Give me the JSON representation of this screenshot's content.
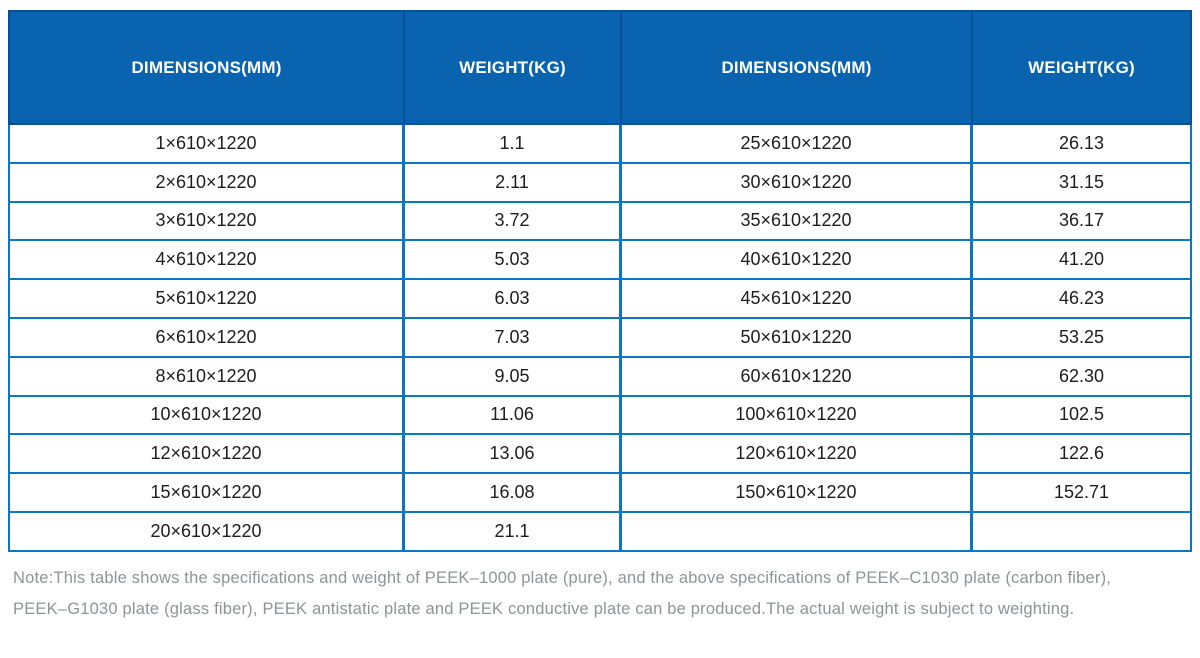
{
  "colors": {
    "header_bg": "#0A63AE",
    "header_divider": "#084F9A",
    "grid_line": "#0B76C6",
    "cell_text": "#1D1D1F",
    "note_text": "#909396"
  },
  "chart_data": {
    "type": "table",
    "columns": [
      "DIMENSIONS(MM)",
      "WEIGHT(KG)",
      "DIMENSIONS(MM)",
      "WEIGHT(KG)"
    ],
    "rows": [
      [
        "1×610×1220",
        "1.1",
        "25×610×1220",
        "26.13"
      ],
      [
        "2×610×1220",
        "2.11",
        "30×610×1220",
        "31.15"
      ],
      [
        "3×610×1220",
        "3.72",
        "35×610×1220",
        "36.17"
      ],
      [
        "4×610×1220",
        "5.03",
        "40×610×1220",
        "41.20"
      ],
      [
        "5×610×1220",
        "6.03",
        "45×610×1220",
        "46.23"
      ],
      [
        "6×610×1220",
        "7.03",
        "50×610×1220",
        "53.25"
      ],
      [
        "8×610×1220",
        "9.05",
        "60×610×1220",
        "62.30"
      ],
      [
        "10×610×1220",
        "11.06",
        "100×610×1220",
        "102.5"
      ],
      [
        "12×610×1220",
        "13.06",
        "120×610×1220",
        "122.6"
      ],
      [
        "15×610×1220",
        "16.08",
        "150×610×1220",
        "152.71"
      ],
      [
        "20×610×1220",
        "21.1",
        "",
        ""
      ]
    ],
    "title": "",
    "note": "Note:This table shows the specifications and weight of PEEK–1000 plate (pure), and the above specifications of PEEK–C1030 plate (carbon fiber), PEEK–G1030 plate (glass fiber), PEEK antistatic plate and PEEK conductive plate can be produced.The actual weight is subject to weighting."
  },
  "note": {
    "lines": [
      "Note:This table shows the specifications and weight of PEEK–1000 plate (pure), and the above specifications of PEEK–C1030 plate (carbon fiber),",
      "PEEK–G1030 plate (glass fiber), PEEK antistatic plate and PEEK conductive plate can be produced.The actual weight is subject to weighting."
    ]
  }
}
